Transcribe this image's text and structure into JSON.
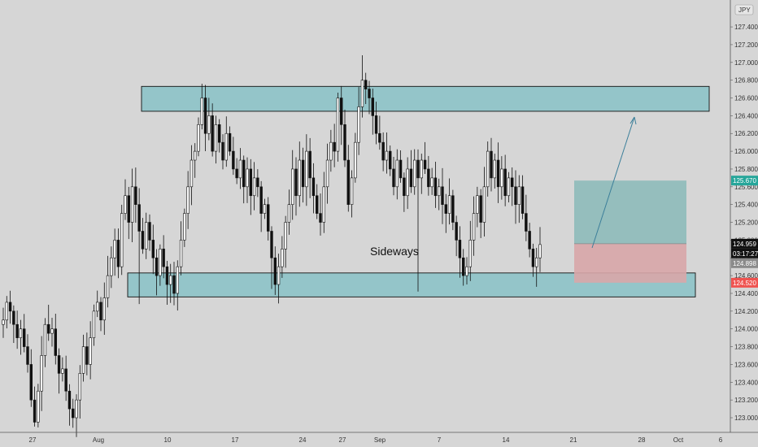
{
  "chart_data": {
    "type": "candlestick",
    "currency": "JPY",
    "annotation": "Sideways",
    "ylim": [
      122.9,
      127.6
    ],
    "y_ticks": [
      123.0,
      123.2,
      123.4,
      123.6,
      123.8,
      124.0,
      124.2,
      124.4,
      124.6,
      124.8,
      125.0,
      125.2,
      125.4,
      125.6,
      125.8,
      126.0,
      126.2,
      126.4,
      126.6,
      126.8,
      127.0,
      127.2,
      127.4
    ],
    "y_tick_labels": [
      "123.000",
      "123.200",
      "123.400",
      "123.600",
      "123.800",
      "124.000",
      "124.200",
      "124.400",
      "124.600",
      "124.800",
      "125.000",
      "125.200",
      "125.400",
      "125.600",
      "125.800",
      "126.000",
      "126.200",
      "126.400",
      "126.600",
      "126.800",
      "127.000",
      "127.200",
      "127.400"
    ],
    "x_tick_labels": [
      "27",
      "Aug",
      "10",
      "17",
      "24",
      "27",
      "Sep",
      "7",
      "14",
      "21",
      "28",
      "Oct",
      "6"
    ],
    "price_badges": [
      {
        "label": "125.670",
        "value": 125.67,
        "color": "#26a69a"
      },
      {
        "label": "124.959",
        "value": 124.959,
        "color": "#111111"
      },
      {
        "label": "03:17:27",
        "value": 124.85,
        "color": "#111111"
      },
      {
        "label": "124.898",
        "value": 124.74,
        "color": "#8a8a8a"
      },
      {
        "label": "124.520",
        "value": 124.52,
        "color": "#ef5350"
      }
    ],
    "zones": [
      {
        "name": "resistance",
        "low": 126.45,
        "high": 126.73
      },
      {
        "name": "support",
        "low": 124.36,
        "high": 124.63
      }
    ],
    "position": {
      "entry": 124.959,
      "target": 125.67,
      "stop": 124.52
    },
    "closes": [
      124.1,
      124.3,
      124.2,
      124.05,
      123.9,
      124.0,
      123.8,
      123.6,
      123.2,
      122.95,
      123.3,
      123.7,
      124.05,
      123.95,
      124.0,
      123.7,
      123.5,
      123.55,
      123.3,
      123.1,
      123.0,
      123.2,
      123.5,
      123.8,
      123.6,
      123.9,
      124.2,
      124.3,
      124.1,
      124.35,
      124.6,
      124.8,
      125.0,
      124.7,
      125.3,
      125.5,
      125.2,
      125.6,
      125.4,
      125.1,
      124.9,
      125.2,
      125.0,
      124.8,
      124.6,
      124.9,
      124.7,
      124.5,
      124.6,
      124.4,
      124.7,
      125.0,
      125.3,
      125.6,
      125.9,
      126.0,
      126.3,
      126.6,
      126.2,
      126.4,
      126.0,
      126.3,
      126.1,
      125.9,
      126.2,
      126.0,
      125.8,
      125.7,
      125.9,
      125.6,
      125.8,
      125.5,
      125.7,
      125.6,
      125.3,
      125.4,
      125.1,
      124.8,
      124.5,
      124.7,
      124.9,
      125.2,
      125.4,
      125.8,
      125.5,
      125.9,
      125.6,
      126.0,
      125.7,
      125.5,
      125.3,
      125.2,
      125.6,
      125.9,
      126.1,
      126.0,
      126.6,
      126.3,
      125.9,
      125.4,
      125.7,
      126.1,
      126.5,
      126.8,
      126.7,
      126.6,
      126.4,
      126.2,
      126.1,
      125.9,
      126.0,
      125.8,
      125.6,
      125.9,
      125.7,
      125.5,
      125.8,
      125.6,
      125.9,
      125.7,
      125.9,
      125.8,
      125.6,
      125.7,
      125.5,
      125.6,
      125.4,
      125.3,
      125.5,
      125.2,
      125.0,
      124.8,
      124.6,
      124.7,
      125.0,
      125.3,
      125.5,
      125.2,
      125.6,
      126.0,
      125.7,
      125.9,
      125.6,
      125.8,
      125.5,
      125.7,
      125.6,
      125.4,
      125.6,
      125.3,
      125.1,
      124.9,
      124.7,
      124.8,
      124.95
    ],
    "lows_special": {
      "9": 122.9,
      "39": 124.28,
      "77": 124.45,
      "119": 124.42,
      "133": 124.5
    }
  }
}
